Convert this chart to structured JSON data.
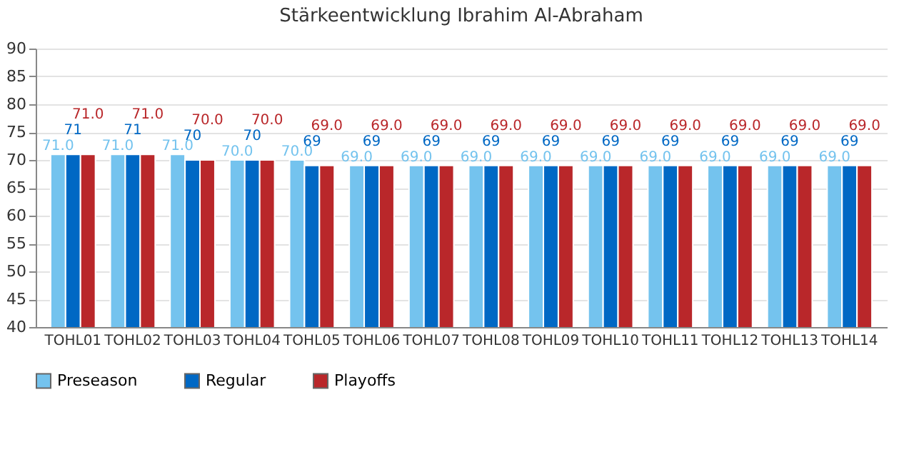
{
  "chart_data": {
    "type": "bar",
    "title": "Stärkeentwicklung Ibrahim Al-Abraham",
    "categories": [
      "TOHL01",
      "TOHL02",
      "TOHL03",
      "TOHL04",
      "TOHL05",
      "TOHL06",
      "TOHL07",
      "TOHL08",
      "TOHL09",
      "TOHL10",
      "TOHL11",
      "TOHL12",
      "TOHL13",
      "TOHL14"
    ],
    "series": [
      {
        "name": "Preseason",
        "color": "#74c3ee",
        "values": [
          71,
          71,
          71,
          70,
          70,
          69,
          69,
          69,
          69,
          69,
          69,
          69,
          69,
          69
        ],
        "value_labels": [
          "71.0",
          "71.0",
          "71.0",
          "70.0",
          "70.0",
          "69.0",
          "69.0",
          "69.0",
          "69.0",
          "69.0",
          "69.0",
          "69.0",
          "69.0",
          "69.0"
        ]
      },
      {
        "name": "Regular",
        "color": "#0068c4",
        "values": [
          71,
          71,
          70,
          70,
          69,
          69,
          69,
          69,
          69,
          69,
          69,
          69,
          69,
          69
        ],
        "value_labels": [
          "71",
          "71",
          "70",
          "70",
          "69",
          "69",
          "69",
          "69",
          "69",
          "69",
          "69",
          "69",
          "69",
          "69"
        ]
      },
      {
        "name": "Playoffs",
        "color": "#b9272a",
        "values": [
          71,
          71,
          70,
          70,
          69,
          69,
          69,
          69,
          69,
          69,
          69,
          69,
          69,
          69
        ],
        "value_labels": [
          "71.0",
          "71.0",
          "70.0",
          "70.0",
          "69.0",
          "69.0",
          "69.0",
          "69.0",
          "69.0",
          "69.0",
          "69.0",
          "69.0",
          "69.0",
          "69.0"
        ]
      }
    ],
    "ylim": [
      40,
      90
    ],
    "yticks": [
      40,
      45,
      50,
      55,
      60,
      65,
      70,
      75,
      80,
      85,
      90
    ],
    "grid": "y",
    "legend": "bottom"
  }
}
